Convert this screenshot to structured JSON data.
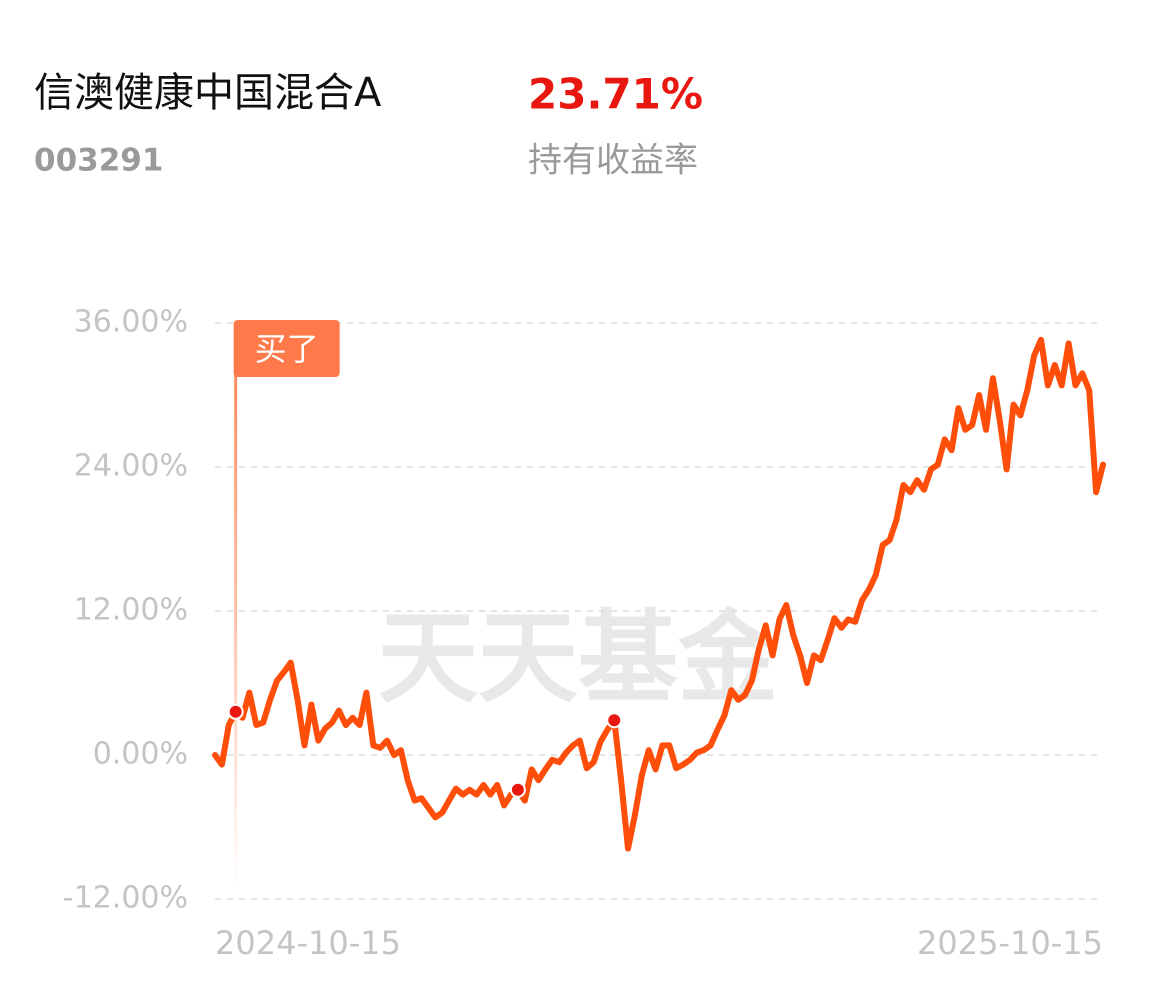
{
  "header": {
    "title": "信澳健康中国混合A",
    "code": "003291",
    "return_value": "23.71%",
    "return_label": "持有收益率"
  },
  "chart_data": {
    "type": "line",
    "watermark": "天天基金",
    "annotation": "买了",
    "buy_index": 3,
    "dot_indices": [
      3,
      44,
      58
    ],
    "color": "#ff4d0a",
    "x_labels": [
      "2024-10-15",
      "2025-10-15"
    ],
    "values": [
      0,
      -0.8,
      2.5,
      3.6,
      3.1,
      5.2,
      2.5,
      2.7,
      4.6,
      6.2,
      6.9,
      7.7,
      4.6,
      0.8,
      4.2,
      1.2,
      2.2,
      2.7,
      3.7,
      2.5,
      3.1,
      2.5,
      5.2,
      0.8,
      0.6,
      1.2,
      0,
      0.4,
      -2.1,
      -3.8,
      -3.6,
      -4.4,
      -5.2,
      -4.8,
      -3.8,
      -2.8,
      -3.3,
      -2.9,
      -3.3,
      -2.5,
      -3.3,
      -2.5,
      -4.2,
      -3.3,
      -2.9,
      -3.8,
      -1.2,
      -2.1,
      -1.2,
      -0.4,
      -0.6,
      0.2,
      0.8,
      1.2,
      -1.1,
      -0.6,
      1.1,
      2.1,
      2.9,
      -2.1,
      -7.8,
      -5,
      -1.7,
      0.4,
      -1.2,
      0.8,
      0.8,
      -1.1,
      -0.8,
      -0.4,
      0.2,
      0.4,
      0.8,
      2.1,
      3.3,
      5.4,
      4.6,
      5,
      6.2,
      8.8,
      10.8,
      8.3,
      11.3,
      12.5,
      10,
      8.3,
      6,
      8.3,
      7.9,
      9.6,
      11.4,
      10.6,
      11.3,
      11.1,
      12.9,
      13.8,
      15,
      17.5,
      17.9,
      19.6,
      22.5,
      21.9,
      22.9,
      22.1,
      23.8,
      24.2,
      26.3,
      25.4,
      28.9,
      27.1,
      27.5,
      30,
      27.1,
      31.4,
      27.9,
      23.8,
      29.2,
      28.3,
      30.4,
      33.3,
      34.6,
      30.8,
      32.5,
      30.8,
      34.3,
      30.8,
      31.8,
      30.4,
      21.9,
      24.2
    ],
    "ylim": [
      -12,
      36
    ],
    "yticks": [
      {
        "value": -12,
        "label": "-12.00%"
      },
      {
        "value": 0,
        "label": "0.00%"
      },
      {
        "value": 12,
        "label": "12.00%"
      },
      {
        "value": 24,
        "label": "24.00%"
      },
      {
        "value": 36,
        "label": "36.00%"
      }
    ],
    "grid": true
  }
}
